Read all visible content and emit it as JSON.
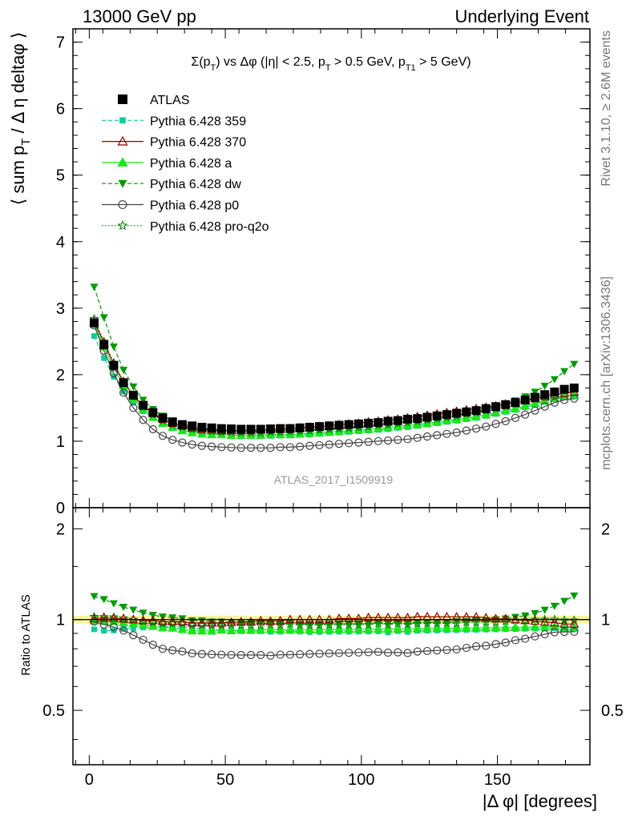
{
  "header": {
    "left": "13000 GeV pp",
    "right": "Underlying Event"
  },
  "side_labels": {
    "rivet": "Rivet 3.1.10, ≥ 2.6M events",
    "mcplots": "mcplots.cern.ch [arXiv:1306.3436]"
  },
  "chart_data": {
    "type": "scatter",
    "title": "Σ(p_T) vs Δφ (|η| < 2.5, p_T > 0.5 GeV, p_T1 > 5 GeV)",
    "title_parts": {
      "main": "Σ(p",
      "sub1": "T",
      "mid": ") vs Δφ (|η| < 2.5, p",
      "sub2": "T",
      "mid2": " > 0.5 GeV, p",
      "sub3": "T1",
      "end": " > 5 GeV)"
    },
    "ylabel": "⟨ sum p_T / Δ η deltaφ ⟩",
    "ylabel_parts": {
      "a": "⟨ sum p",
      "sub": "T",
      "b": " / Δ η deltaφ ⟩"
    },
    "xlabel": "|Δ φ| [degrees]",
    "ratio_ylabel": "Ratio to ATLAS",
    "watermark": "ATLAS_2017_I1509919",
    "xlim": [
      -6,
      184
    ],
    "ylim": [
      0,
      7.2
    ],
    "ratio_ylim": [
      0.33,
      2.35
    ],
    "ratio_log": true,
    "x_ticks": [
      "0",
      "50",
      "100",
      "150"
    ],
    "y_ticks": [
      "0",
      "1",
      "2",
      "3",
      "4",
      "5",
      "6",
      "7"
    ],
    "ratio_ticks": [
      "0.5",
      "1",
      "2"
    ],
    "legend_position": "top-left",
    "x": [
      1.8,
      5.4,
      9.0,
      12.6,
      16.2,
      19.8,
      23.4,
      27.0,
      30.6,
      34.2,
      37.8,
      41.4,
      45.0,
      48.6,
      52.2,
      55.8,
      59.4,
      63.0,
      66.6,
      70.2,
      73.8,
      77.4,
      81.0,
      84.6,
      88.2,
      91.8,
      95.4,
      99.0,
      102.6,
      106.2,
      109.8,
      113.4,
      117.0,
      120.6,
      124.2,
      127.8,
      131.4,
      135.0,
      138.6,
      142.2,
      145.8,
      149.4,
      153.0,
      156.6,
      160.2,
      163.8,
      167.4,
      171.0,
      174.6,
      178.2
    ],
    "series": [
      {
        "name": "ATLAS",
        "color": "#000000",
        "marker": "square",
        "line": "none",
        "values": [
          2.78,
          2.45,
          2.14,
          1.88,
          1.69,
          1.54,
          1.43,
          1.35,
          1.29,
          1.25,
          1.23,
          1.21,
          1.2,
          1.19,
          1.185,
          1.18,
          1.18,
          1.18,
          1.185,
          1.19,
          1.19,
          1.2,
          1.21,
          1.22,
          1.23,
          1.24,
          1.25,
          1.26,
          1.27,
          1.28,
          1.3,
          1.31,
          1.33,
          1.34,
          1.36,
          1.38,
          1.4,
          1.42,
          1.44,
          1.46,
          1.49,
          1.52,
          1.55,
          1.58,
          1.62,
          1.66,
          1.7,
          1.74,
          1.78,
          1.8
        ]
      },
      {
        "name": "Pythia 6.428 359",
        "color": "#12c99a",
        "marker": "small-square",
        "line": "dashed",
        "values": [
          2.58,
          2.25,
          1.97,
          1.75,
          1.58,
          1.45,
          1.35,
          1.28,
          1.22,
          1.18,
          1.15,
          1.13,
          1.11,
          1.1,
          1.09,
          1.08,
          1.08,
          1.08,
          1.08,
          1.085,
          1.09,
          1.095,
          1.1,
          1.11,
          1.12,
          1.13,
          1.14,
          1.15,
          1.16,
          1.17,
          1.18,
          1.2,
          1.21,
          1.23,
          1.25,
          1.27,
          1.29,
          1.31,
          1.33,
          1.35,
          1.38,
          1.41,
          1.44,
          1.47,
          1.51,
          1.55,
          1.59,
          1.63,
          1.66,
          1.67
        ]
      },
      {
        "name": "Pythia 6.428 370",
        "color": "#8b0000",
        "marker": "open-triangle",
        "line": "solid",
        "values": [
          2.8,
          2.48,
          2.16,
          1.89,
          1.69,
          1.53,
          1.42,
          1.33,
          1.27,
          1.23,
          1.2,
          1.18,
          1.17,
          1.16,
          1.16,
          1.16,
          1.16,
          1.17,
          1.17,
          1.18,
          1.19,
          1.2,
          1.21,
          1.22,
          1.23,
          1.25,
          1.26,
          1.27,
          1.29,
          1.3,
          1.32,
          1.33,
          1.35,
          1.37,
          1.39,
          1.41,
          1.43,
          1.45,
          1.47,
          1.49,
          1.51,
          1.53,
          1.56,
          1.58,
          1.61,
          1.64,
          1.67,
          1.7,
          1.72,
          1.74
        ]
      },
      {
        "name": "Pythia 6.428 a",
        "color": "#19e619",
        "marker": "triangle",
        "line": "solid",
        "values": [
          2.76,
          2.42,
          2.11,
          1.84,
          1.64,
          1.48,
          1.36,
          1.27,
          1.21,
          1.16,
          1.13,
          1.11,
          1.1,
          1.1,
          1.09,
          1.09,
          1.09,
          1.09,
          1.1,
          1.1,
          1.1,
          1.11,
          1.12,
          1.13,
          1.14,
          1.15,
          1.16,
          1.17,
          1.18,
          1.19,
          1.21,
          1.22,
          1.24,
          1.25,
          1.27,
          1.29,
          1.31,
          1.33,
          1.35,
          1.37,
          1.4,
          1.43,
          1.46,
          1.49,
          1.53,
          1.57,
          1.61,
          1.65,
          1.68,
          1.7
        ]
      },
      {
        "name": "Pythia 6.428 dw",
        "color": "#009900",
        "marker": "down-triangle",
        "line": "dashed",
        "values": [
          3.32,
          2.86,
          2.42,
          2.07,
          1.82,
          1.62,
          1.48,
          1.38,
          1.31,
          1.26,
          1.22,
          1.2,
          1.18,
          1.17,
          1.16,
          1.15,
          1.15,
          1.15,
          1.15,
          1.15,
          1.16,
          1.16,
          1.17,
          1.18,
          1.19,
          1.2,
          1.21,
          1.22,
          1.23,
          1.25,
          1.26,
          1.28,
          1.29,
          1.31,
          1.33,
          1.35,
          1.37,
          1.4,
          1.42,
          1.45,
          1.48,
          1.52,
          1.56,
          1.61,
          1.67,
          1.74,
          1.83,
          1.93,
          2.05,
          2.16
        ]
      },
      {
        "name": "Pythia 6.428 p0",
        "color": "#444444",
        "marker": "open-circle",
        "line": "solid",
        "values": [
          2.74,
          2.36,
          2.02,
          1.73,
          1.5,
          1.32,
          1.18,
          1.08,
          1.02,
          0.98,
          0.95,
          0.93,
          0.92,
          0.91,
          0.905,
          0.9,
          0.9,
          0.9,
          0.9,
          0.91,
          0.91,
          0.92,
          0.93,
          0.94,
          0.95,
          0.96,
          0.97,
          0.98,
          0.99,
          1.0,
          1.01,
          1.02,
          1.03,
          1.05,
          1.07,
          1.09,
          1.11,
          1.13,
          1.16,
          1.19,
          1.22,
          1.26,
          1.3,
          1.35,
          1.4,
          1.46,
          1.52,
          1.58,
          1.62,
          1.64
        ]
      },
      {
        "name": "Pythia 6.428 pro-q2o",
        "color": "#007700",
        "marker": "star",
        "line": "dotted",
        "values": [
          2.84,
          2.5,
          2.18,
          1.9,
          1.69,
          1.52,
          1.4,
          1.31,
          1.25,
          1.21,
          1.18,
          1.16,
          1.15,
          1.14,
          1.14,
          1.13,
          1.13,
          1.13,
          1.14,
          1.14,
          1.15,
          1.15,
          1.16,
          1.17,
          1.18,
          1.19,
          1.2,
          1.21,
          1.22,
          1.24,
          1.25,
          1.27,
          1.28,
          1.3,
          1.32,
          1.34,
          1.36,
          1.38,
          1.41,
          1.43,
          1.46,
          1.49,
          1.53,
          1.57,
          1.61,
          1.66,
          1.7,
          1.74,
          1.77,
          1.79
        ]
      }
    ]
  }
}
